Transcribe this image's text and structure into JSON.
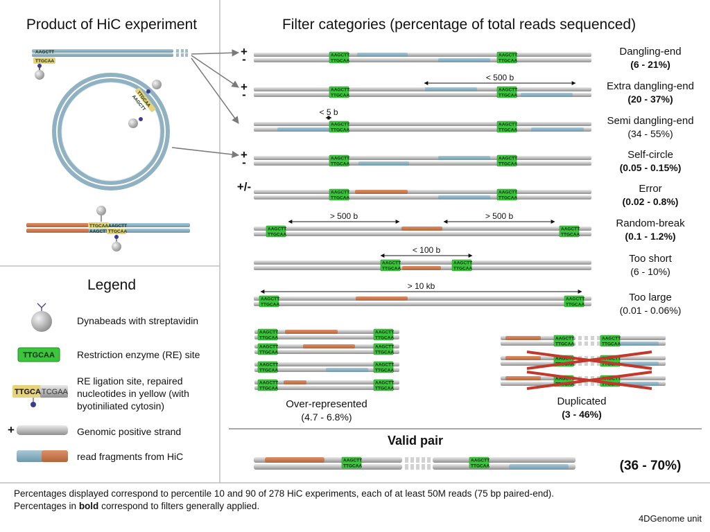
{
  "titles": {
    "left": "Product of HiC experiment",
    "right": "Filter categories (percentage of total reads sequenced)",
    "legend": "Legend"
  },
  "re_site": {
    "top": "AAGCTT",
    "bottom": "TTGCAA"
  },
  "ligation_labels": {
    "yellow": "TTGCAA",
    "blue": "AAGCTT"
  },
  "categories": [
    {
      "name": "Dangling-end",
      "pct": "(6 - 21%)",
      "bold": true,
      "sign": "+\n-"
    },
    {
      "name": "Extra dangling-end",
      "pct": "(20 - 37%)",
      "bold": true,
      "sign": "+\n-",
      "distance": "< 500 b"
    },
    {
      "name": "Semi dangling-end",
      "pct": "(34 - 55%)",
      "bold": false,
      "distance": "< 5 b"
    },
    {
      "name": "Self-circle",
      "pct": "(0.05 - 0.15%)",
      "bold": true,
      "sign": "+\n-"
    },
    {
      "name": "Error",
      "pct": "(0.02 - 0.8%)",
      "bold": true,
      "sign": "+/-"
    },
    {
      "name": "Random-break",
      "pct": "(0.1 - 1.2%)",
      "bold": true,
      "distance_left": "> 500 b",
      "distance_right": "> 500 b"
    },
    {
      "name": "Too short",
      "pct": "(6 - 10%)",
      "bold": false,
      "distance": "< 100 b"
    },
    {
      "name": "Too large",
      "pct": "(0.01 - 0.06%)",
      "bold": false,
      "distance": "> 10 kb"
    }
  ],
  "over_represented": {
    "name": "Over-represented",
    "pct": "(4.7 - 6.8%)"
  },
  "duplicated": {
    "name": "Duplicated",
    "pct": "(3 - 46%)"
  },
  "valid_pair": {
    "name": "Valid pair",
    "pct": "(36 - 70%)"
  },
  "legend": {
    "dynabeads": "Dynabeads with streptavidin",
    "re_site_label": "TTGCAA",
    "re_site": "Restriction enzyme (RE) site",
    "ligation_yellow": "TTGCA",
    "ligation_gray": "TCGAA",
    "ligation_line1": "RE ligation site, repaired",
    "ligation_line2": "nucleotides in yellow (with",
    "ligation_line3": "byotiniliated cytosin)",
    "strand_sign": "+",
    "strand": "Genomic positive strand",
    "fragments": "read fragments from HiC"
  },
  "footer": {
    "line1": "Percentages displayed correspond to percentile 10 and 90 of 278 HiC experiments, each of at least 50M reads (75 bp paired-end).",
    "line2_pre": "Percentages in ",
    "line2_bold": "bold",
    "line2_post": " correspond to filters generally applied.",
    "credit": "4DGenome unit"
  },
  "colors": {
    "strand": "#bdbdbd",
    "blue_read": "#7fa9bd",
    "orange_read": "#c7744a",
    "re_green": "#3cc43c",
    "yellow": "#e6d27a",
    "cross": "#c0392b",
    "circle": "#8fb1c2"
  }
}
